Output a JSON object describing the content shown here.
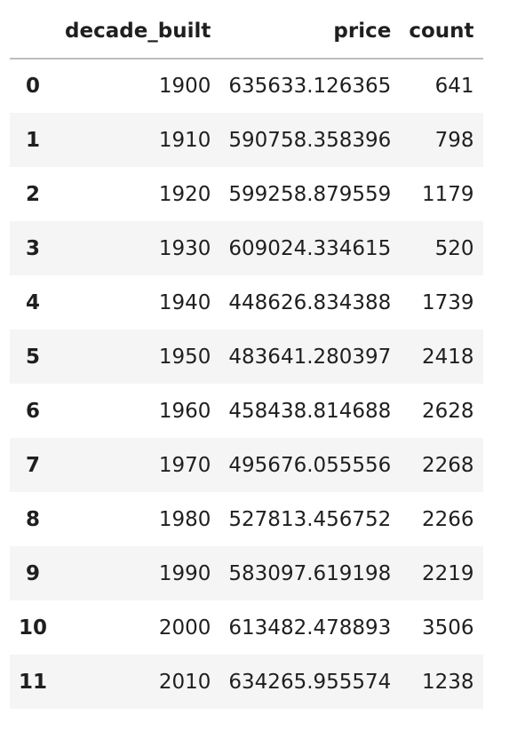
{
  "table": {
    "columns": [
      "",
      "decade_built",
      "price",
      "count"
    ],
    "rows": [
      {
        "index": "0",
        "decade_built": "1900",
        "price": "635633.126365",
        "count": "641"
      },
      {
        "index": "1",
        "decade_built": "1910",
        "price": "590758.358396",
        "count": "798"
      },
      {
        "index": "2",
        "decade_built": "1920",
        "price": "599258.879559",
        "count": "1179"
      },
      {
        "index": "3",
        "decade_built": "1930",
        "price": "609024.334615",
        "count": "520"
      },
      {
        "index": "4",
        "decade_built": "1940",
        "price": "448626.834388",
        "count": "1739"
      },
      {
        "index": "5",
        "decade_built": "1950",
        "price": "483641.280397",
        "count": "2418"
      },
      {
        "index": "6",
        "decade_built": "1960",
        "price": "458438.814688",
        "count": "2628"
      },
      {
        "index": "7",
        "decade_built": "1970",
        "price": "495676.055556",
        "count": "2268"
      },
      {
        "index": "8",
        "decade_built": "1980",
        "price": "527813.456752",
        "count": "2266"
      },
      {
        "index": "9",
        "decade_built": "1990",
        "price": "583097.619198",
        "count": "2219"
      },
      {
        "index": "10",
        "decade_built": "2000",
        "price": "613482.478893",
        "count": "3506"
      },
      {
        "index": "11",
        "decade_built": "2010",
        "price": "634265.955574",
        "count": "1238"
      }
    ]
  }
}
